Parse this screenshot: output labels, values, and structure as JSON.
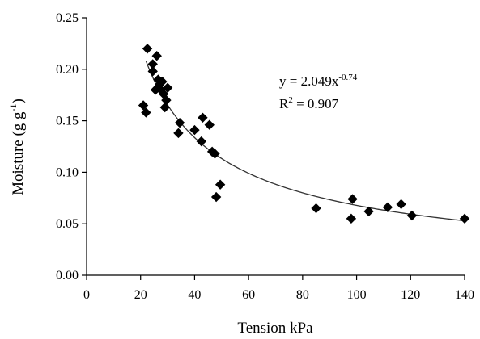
{
  "chart_data": {
    "type": "scatter",
    "title": "",
    "xlabel": "Tension kPa",
    "ylabel": "Moisture (g g",
    "ylabel_sup": "-1",
    "ylabel_tail": ")",
    "xlim": [
      0,
      140
    ],
    "ylim": [
      0,
      0.25
    ],
    "xticks": [
      "0",
      "20",
      "40",
      "60",
      "80",
      "100",
      "120",
      "140"
    ],
    "yticks": [
      "0.00",
      "0.05",
      "0.10",
      "0.15",
      "0.20",
      "0.25"
    ],
    "grid": false,
    "legend": "none",
    "marker": "diamond",
    "marker_color": "#000000",
    "series": [
      {
        "points": [
          [
            21.0,
            0.165
          ],
          [
            22.0,
            0.158
          ],
          [
            22.5,
            0.22
          ],
          [
            24.5,
            0.205
          ],
          [
            24.5,
            0.198
          ],
          [
            25.5,
            0.18
          ],
          [
            26.0,
            0.213
          ],
          [
            26.5,
            0.19
          ],
          [
            27.0,
            0.185
          ],
          [
            27.5,
            0.18
          ],
          [
            28.0,
            0.188
          ],
          [
            28.5,
            0.176
          ],
          [
            29.0,
            0.163
          ],
          [
            29.5,
            0.17
          ],
          [
            30.0,
            0.182
          ],
          [
            34.0,
            0.138
          ],
          [
            34.5,
            0.148
          ],
          [
            40.0,
            0.141
          ],
          [
            42.5,
            0.13
          ],
          [
            43.0,
            0.153
          ],
          [
            45.5,
            0.146
          ],
          [
            46.5,
            0.12
          ],
          [
            47.5,
            0.118
          ],
          [
            48.0,
            0.076
          ],
          [
            49.5,
            0.088
          ],
          [
            85.0,
            0.065
          ],
          [
            98.0,
            0.055
          ],
          [
            98.5,
            0.074
          ],
          [
            104.5,
            0.062
          ],
          [
            111.5,
            0.066
          ],
          [
            116.5,
            0.069
          ],
          [
            120.5,
            0.058
          ],
          [
            140.0,
            0.055
          ]
        ]
      }
    ],
    "trendline": {
      "type": "power",
      "coefficient": 2.049,
      "exponent": -0.74,
      "x_from": 22,
      "x_to": 140,
      "color": "#333333"
    },
    "annotation": {
      "equation_prefix": "y = 2.049x",
      "equation_exponent": "-0.74",
      "r2_prefix": "R",
      "r2_sup": "2",
      "r2_suffix": " = 0.907"
    }
  }
}
